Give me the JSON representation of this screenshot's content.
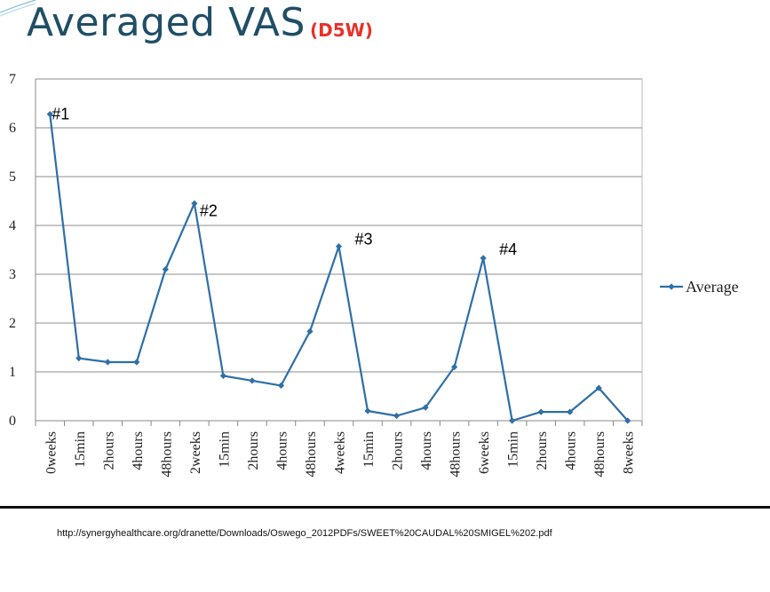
{
  "header": {
    "title": "Averaged VAS",
    "subtitle": "(D5W)"
  },
  "colors": {
    "title": "#1f4e66",
    "subtitle": "#e8312a",
    "series": "#2e6fa7",
    "grid": "#8c8c8c"
  },
  "chart_data": {
    "type": "line",
    "categories": [
      "0weeks",
      "15min",
      "2hours",
      "4hours",
      "48hours",
      "2weeks",
      "15min",
      "2hours",
      "4hours",
      "48hours",
      "4weeks",
      "15min",
      "2hours",
      "4hours",
      "48hours",
      "6weeks",
      "15min",
      "2hours",
      "4hours",
      "48hours",
      "8weeks"
    ],
    "series": [
      {
        "name": "Average",
        "values": [
          6.28,
          1.28,
          1.2,
          1.2,
          3.1,
          4.45,
          0.92,
          0.82,
          0.72,
          1.83,
          3.57,
          0.2,
          0.1,
          0.27,
          1.1,
          3.33,
          0.0,
          0.18,
          0.18,
          0.67,
          0.0
        ]
      }
    ],
    "ylim": [
      0,
      7
    ],
    "yticks": [
      "0",
      "1",
      "2",
      "3",
      "4",
      "5",
      "6",
      "7"
    ],
    "grid": true,
    "legend": "right",
    "annotations": [
      {
        "text": "#1",
        "index": 0
      },
      {
        "text": "#2",
        "index": 5
      },
      {
        "text": "#3",
        "index": 10
      },
      {
        "text": "#4",
        "index": 15
      }
    ]
  },
  "footer": {
    "source": "http://synergyhealthcare.org/dranette/Downloads/Oswego_2012PDFs/SWEET%20CAUDAL%20SMIGEL%202.pdf"
  }
}
